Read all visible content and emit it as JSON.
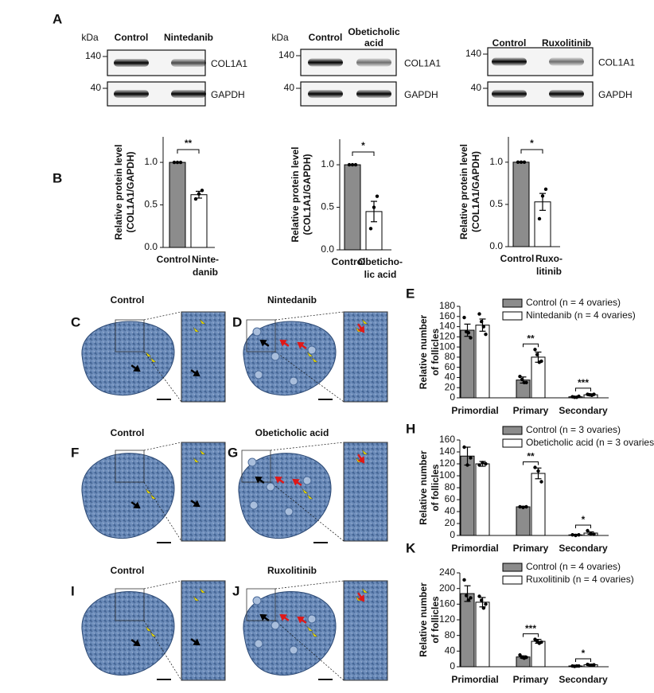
{
  "blot_panel": {
    "label": "A",
    "blots": [
      {
        "unit": "kDa",
        "lanes": [
          [
            "Control"
          ],
          [
            "Nintedanib"
          ]
        ],
        "markers": [
          140,
          40
        ],
        "proteins": [
          "COL1A1",
          "GAPDH"
        ]
      },
      {
        "unit": "kDa",
        "lanes": [
          [
            "Control"
          ],
          [
            "Obeticholic",
            "acid"
          ]
        ],
        "markers": [
          140,
          40
        ],
        "proteins": [
          "COL1A1",
          "GAPDH"
        ]
      },
      {
        "lanes": [
          [
            "Control"
          ],
          [
            "Ruxolitinib"
          ]
        ],
        "markers": [
          140,
          40
        ],
        "proteins": [
          "COL1A1",
          "GAPDH"
        ]
      }
    ]
  },
  "histology": [
    {
      "label": "C",
      "title": "Control"
    },
    {
      "label": "D",
      "title": "Nintedanib"
    },
    {
      "label": "F",
      "title": "Control"
    },
    {
      "label": "G",
      "title": "Obeticholic acid"
    },
    {
      "label": "I",
      "title": "Control"
    },
    {
      "label": "J",
      "title": "Ruxolitinib"
    }
  ],
  "chart_data": [
    {
      "type": "bar",
      "label": "B",
      "ylabel": [
        "Relative protein level",
        "(COL1A1/GAPDH)"
      ],
      "categories": [
        [
          "Control"
        ],
        [
          "Ninte-",
          "danib"
        ]
      ],
      "values": [
        1.0,
        0.62
      ],
      "errors": [
        null,
        0.04
      ],
      "points": [
        [
          1.0,
          1.0,
          1.0
        ],
        [
          0.57,
          0.63,
          0.67
        ]
      ],
      "colors": [
        "#8c8c8c",
        "#ffffff"
      ],
      "ylim": [
        0,
        1.3
      ],
      "yticks": [
        {
          "value": 0,
          "label": "0.0"
        },
        {
          "value": 0.5,
          "label": "0.5"
        },
        {
          "value": 1.0,
          "label": "1.0"
        }
      ],
      "significance": "**"
    },
    {
      "type": "bar",
      "ylabel": [
        "Relative protein level",
        "(COL1A1/GAPDH)"
      ],
      "categories": [
        [
          "Control"
        ],
        [
          "Obeticho-",
          "lic acid"
        ]
      ],
      "values": [
        1.0,
        0.45
      ],
      "errors": [
        null,
        0.12
      ],
      "points": [
        [
          1.0,
          1.0,
          1.0
        ],
        [
          0.25,
          0.5,
          0.63
        ]
      ],
      "colors": [
        "#8c8c8c",
        "#ffffff"
      ],
      "ylim": [
        0,
        1.3
      ],
      "yticks": [
        {
          "value": 0,
          "label": "0.0"
        },
        {
          "value": 0.5,
          "label": "0.5"
        },
        {
          "value": 1.0,
          "label": "1.0"
        }
      ],
      "significance": "*"
    },
    {
      "type": "bar",
      "ylabel": [
        "Relative protein level",
        "(COL1A1/GAPDH)"
      ],
      "categories": [
        [
          "Control"
        ],
        [
          "Ruxo-",
          "litinib"
        ]
      ],
      "values": [
        1.0,
        0.53
      ],
      "errors": [
        null,
        0.1
      ],
      "points": [
        [
          1.0,
          1.0,
          1.0
        ],
        [
          0.33,
          0.6,
          0.68
        ]
      ],
      "colors": [
        "#8c8c8c",
        "#ffffff"
      ],
      "ylim": [
        0,
        1.3
      ],
      "yticks": [
        {
          "value": 0,
          "label": "0.0"
        },
        {
          "value": 0.5,
          "label": "0.5"
        },
        {
          "value": 1.0,
          "label": "1.0"
        }
      ],
      "significance": "*"
    },
    {
      "type": "grouped_bar",
      "label": "E",
      "ylabel": [
        "Relative number",
        "of follicles"
      ],
      "categories": [
        "Primordial",
        "Primary",
        "Secondary"
      ],
      "series": [
        {
          "name": "Control (n = 4 ovaries)",
          "color": "#8c8c8c",
          "values": [
            133,
            35,
            2
          ],
          "errors": [
            12,
            6,
            1
          ],
          "points": [
            [
              158,
              130,
              128,
              118
            ],
            [
              42,
              36,
              30,
              30
            ],
            [
              2,
              1,
              1,
              3
            ]
          ]
        },
        {
          "name": "Nintedanib (n = 4 ovaries)",
          "color": "#ffffff",
          "values": [
            143,
            80,
            6
          ],
          "errors": [
            12,
            10,
            2
          ],
          "points": [
            [
              165,
              150,
              140,
              125
            ],
            [
              95,
              85,
              70,
              72
            ],
            [
              7,
              6,
              5,
              7
            ]
          ]
        }
      ],
      "ylim": [
        0,
        180
      ],
      "yticks": [
        0,
        20,
        40,
        60,
        80,
        100,
        120,
        140,
        160,
        180
      ],
      "significance": [
        null,
        "**",
        "***"
      ]
    },
    {
      "type": "grouped_bar",
      "label": "H",
      "ylabel": [
        "Relative number",
        "of follicles"
      ],
      "categories": [
        "Primordial",
        "Primary",
        "Secondary"
      ],
      "series": [
        {
          "name": "Control (n = 3 ovaries)",
          "color": "#8c8c8c",
          "values": [
            133,
            48,
            1
          ],
          "errors": [
            15,
            1,
            1
          ],
          "points": [
            [
              148,
              118,
              130
            ],
            [
              48,
              47,
              48
            ],
            [
              1,
              0,
              1
            ]
          ]
        },
        {
          "name": "Obeticholic acid (n = 3 ovaries)",
          "color": "#ffffff",
          "values": [
            120,
            104,
            4
          ],
          "errors": [
            4,
            9,
            2
          ],
          "points": [
            [
              118,
              122,
              120
            ],
            [
              114,
              108,
              90
            ],
            [
              8,
              3,
              2
            ]
          ]
        }
      ],
      "ylim": [
        0,
        160
      ],
      "yticks": [
        0,
        20,
        40,
        60,
        80,
        100,
        120,
        140,
        160
      ],
      "significance": [
        null,
        "**",
        "*"
      ]
    },
    {
      "type": "grouped_bar",
      "label": "K",
      "ylabel": [
        "Relative number",
        "of follicles"
      ],
      "categories": [
        "Primordial",
        "Primary",
        "Secondary"
      ],
      "series": [
        {
          "name": "Control (n = 4 ovaries)",
          "color": "#8c8c8c",
          "values": [
            187,
            25,
            2
          ],
          "errors": [
            20,
            3,
            1
          ],
          "points": [
            [
              222,
              182,
              170,
              176
            ],
            [
              30,
              24,
              22,
              24
            ],
            [
              2,
              1,
              2,
              2
            ]
          ]
        },
        {
          "name": "Ruxolitinib (n = 4 ovaries)",
          "color": "#ffffff",
          "values": [
            165,
            65,
            5
          ],
          "errors": [
            12,
            5,
            1
          ],
          "points": [
            [
              180,
              170,
              150,
              160
            ],
            [
              70,
              65,
              60,
              63
            ],
            [
              6,
              4,
              4,
              5
            ]
          ]
        }
      ],
      "ylim": [
        0,
        240
      ],
      "yticks": [
        0,
        40,
        80,
        120,
        160,
        200,
        240
      ],
      "significance": [
        null,
        "***",
        "*"
      ]
    }
  ]
}
